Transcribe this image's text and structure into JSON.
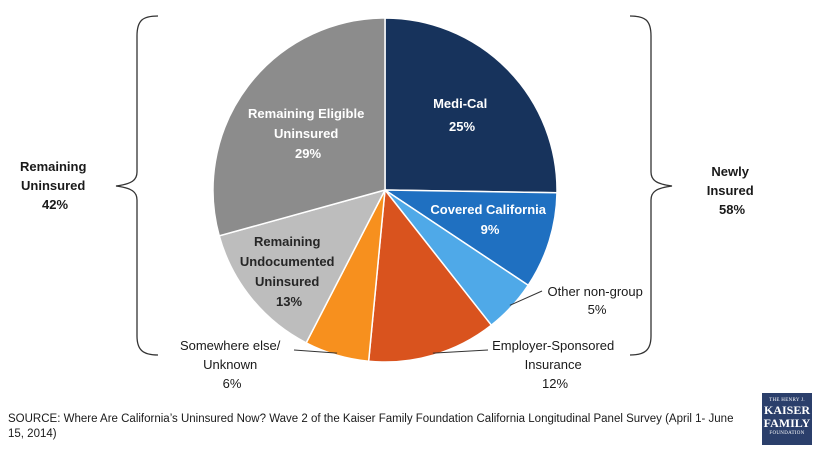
{
  "chart_data": {
    "type": "pie",
    "slices": [
      {
        "name": "Medi-Cal",
        "value": 25,
        "label": "25%",
        "color": "#17335c"
      },
      {
        "name": "Covered California",
        "value": 9,
        "label": "9%",
        "color": "#1f70c1"
      },
      {
        "name": "Other non-group",
        "value": 5,
        "label": "5%",
        "color": "#4fa9e8"
      },
      {
        "name": "Employer-Sponsored Insurance",
        "value": 12,
        "label": "12%",
        "color": "#d9531e"
      },
      {
        "name": "Somewhere else/ Unknown",
        "value": 6,
        "label": "6%",
        "color": "#f7901e"
      },
      {
        "name": "Remaining Undocumented Uninsured",
        "value": 13,
        "label": "13%",
        "color": "#bdbdbd"
      },
      {
        "name": "Remaining Eligible Uninsured",
        "value": 29,
        "label": "29%",
        "color": "#8c8c8c"
      }
    ],
    "groups": [
      {
        "name": "Remaining Uninsured",
        "value": "42%"
      },
      {
        "name": "Newly Insured",
        "value": "58%"
      }
    ]
  },
  "source_text": "SOURCE: Where Are California’s Uninsured Now? Wave 2 of the Kaiser Family Foundation California Longitudinal Panel Survey (April 1- June 15, 2014)",
  "logo": {
    "line1": "THE HENRY J.",
    "line2": "KAISER",
    "line3": "FAMILY",
    "line4": "FOUNDATION"
  }
}
